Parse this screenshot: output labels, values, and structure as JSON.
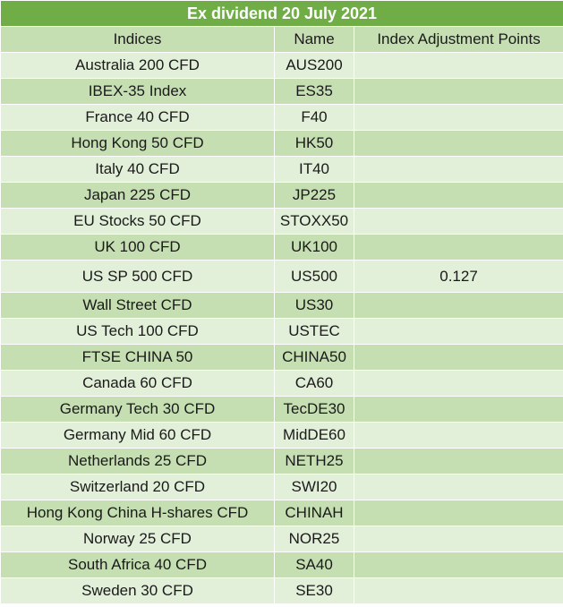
{
  "title": "Ex dividend 20 July 2021",
  "headers": {
    "indices": "Indices",
    "name": "Name",
    "adjustment": "Index Adjustment Points"
  },
  "rows": [
    {
      "index": "Australia 200 CFD",
      "name": "AUS200",
      "points": ""
    },
    {
      "index": "IBEX-35 Index",
      "name": "ES35",
      "points": ""
    },
    {
      "index": "France 40 CFD",
      "name": "F40",
      "points": ""
    },
    {
      "index": "Hong Kong 50 CFD",
      "name": "HK50",
      "points": ""
    },
    {
      "index": "Italy 40 CFD",
      "name": "IT40",
      "points": ""
    },
    {
      "index": "Japan 225 CFD",
      "name": "JP225",
      "points": ""
    },
    {
      "index": "EU Stocks 50 CFD",
      "name": "STOXX50",
      "points": ""
    },
    {
      "index": "UK 100 CFD",
      "name": "UK100",
      "points": ""
    },
    {
      "index": "US SP 500 CFD",
      "name": "US500",
      "points": "0.127"
    },
    {
      "index": "Wall Street CFD",
      "name": "US30",
      "points": ""
    },
    {
      "index": "US Tech 100 CFD",
      "name": "USTEC",
      "points": ""
    },
    {
      "index": "FTSE CHINA 50",
      "name": "CHINA50",
      "points": ""
    },
    {
      "index": "Canada 60 CFD",
      "name": "CA60",
      "points": ""
    },
    {
      "index": "Germany Tech 30 CFD",
      "name": "TecDE30",
      "points": ""
    },
    {
      "index": "Germany Mid 60 CFD",
      "name": "MidDE60",
      "points": ""
    },
    {
      "index": "Netherlands 25 CFD",
      "name": "NETH25",
      "points": ""
    },
    {
      "index": "Switzerland 20 CFD",
      "name": "SWI20",
      "points": ""
    },
    {
      "index": "Hong Kong China H-shares CFD",
      "name": "CHINAH",
      "points": ""
    },
    {
      "index": "Norway 25 CFD",
      "name": "NOR25",
      "points": ""
    },
    {
      "index": "South Africa 40 CFD",
      "name": "SA40",
      "points": ""
    },
    {
      "index": "Sweden 30 CFD",
      "name": "SE30",
      "points": ""
    }
  ],
  "colors": {
    "title_bg": "#70ad47",
    "row_dark": "#c5dfb3",
    "row_light": "#e2efd9"
  }
}
